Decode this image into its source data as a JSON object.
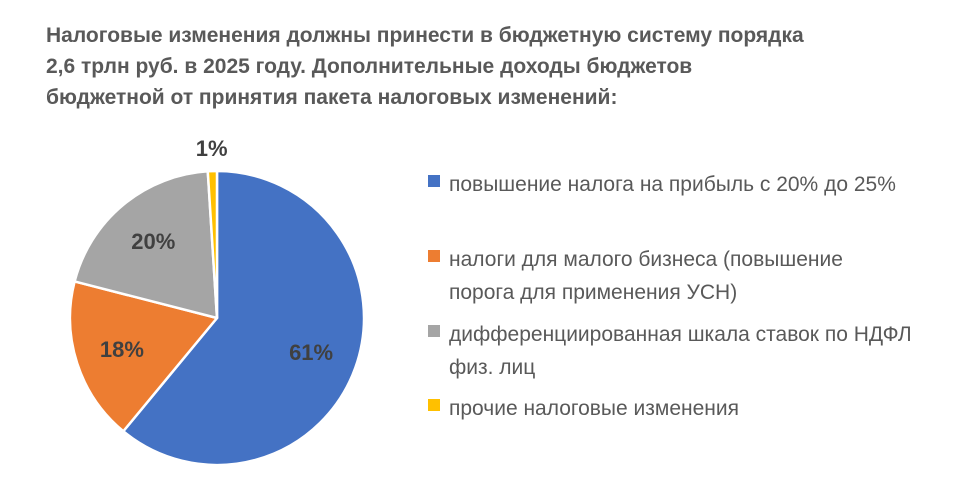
{
  "chart_data": {
    "type": "pie",
    "title": "Налоговые изменения должны принести в бюджетную систему порядка 2,6 трлн руб. в 2025 году. Дополнительные доходы бюджетов бюджетной от принятия пакета налоговых изменений:",
    "categories": [
      "повышение налога на прибыль с 20% до 25%",
      "налоги для малого бизнеса (повышение порога для применения УСН)",
      "дифференциированная шкала ставок по НДФЛ физ. лиц",
      "прочие налоговые изменения"
    ],
    "values": [
      61,
      18,
      20,
      1
    ],
    "data_labels": [
      "61%",
      "18%",
      "20%",
      "1%"
    ],
    "colors": [
      "#4472C4",
      "#ED7D31",
      "#A5A5A5",
      "#FFC000"
    ],
    "legend_position": "right",
    "start_angle_deg": 0,
    "direction": "clockwise"
  }
}
